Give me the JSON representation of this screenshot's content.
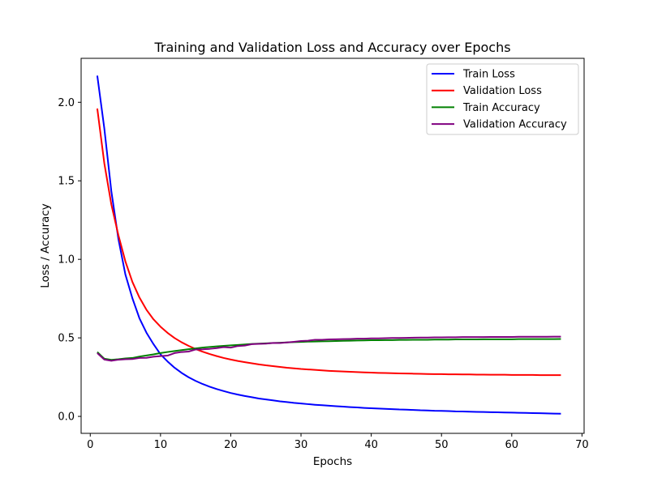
{
  "chart_data": {
    "type": "line",
    "title": "Training and Validation Loss and Accuracy over Epochs",
    "xlabel": "Epochs",
    "ylabel": "Loss / Accuracy",
    "xlim": [
      -1.3,
      70.3
    ],
    "ylim": [
      -0.108,
      2.28
    ],
    "x_ticks": [
      0,
      10,
      20,
      30,
      40,
      50,
      60,
      70
    ],
    "x_tick_labels": [
      "0",
      "10",
      "20",
      "30",
      "40",
      "50",
      "60",
      "70"
    ],
    "y_ticks": [
      0.0,
      0.5,
      1.0,
      1.5,
      2.0
    ],
    "y_tick_labels": [
      "0.0",
      "0.5",
      "1.0",
      "1.5",
      "2.0"
    ],
    "grid": false,
    "legend_position": "top-right",
    "x": [
      1,
      2,
      3,
      4,
      5,
      6,
      7,
      8,
      9,
      10,
      11,
      12,
      13,
      14,
      15,
      16,
      17,
      18,
      19,
      20,
      21,
      22,
      23,
      24,
      25,
      26,
      27,
      28,
      29,
      30,
      31,
      32,
      33,
      34,
      35,
      36,
      37,
      38,
      39,
      40,
      41,
      42,
      43,
      44,
      45,
      46,
      47,
      48,
      49,
      50,
      51,
      52,
      53,
      54,
      55,
      56,
      57,
      58,
      59,
      60,
      61,
      62,
      63,
      64,
      65,
      66,
      67
    ],
    "series": [
      {
        "name": "Train Loss",
        "color": "#0000ff",
        "values": [
          2.17,
          1.834,
          1.434,
          1.131,
          0.904,
          0.752,
          0.625,
          0.533,
          0.46,
          0.395,
          0.35,
          0.31,
          0.277,
          0.249,
          0.226,
          0.206,
          0.189,
          0.174,
          0.161,
          0.149,
          0.139,
          0.13,
          0.122,
          0.114,
          0.108,
          0.102,
          0.096,
          0.091,
          0.086,
          0.082,
          0.078,
          0.074,
          0.071,
          0.068,
          0.065,
          0.062,
          0.059,
          0.057,
          0.054,
          0.052,
          0.05,
          0.048,
          0.046,
          0.044,
          0.043,
          0.041,
          0.039,
          0.038,
          0.036,
          0.035,
          0.034,
          0.032,
          0.031,
          0.03,
          0.029,
          0.028,
          0.027,
          0.026,
          0.025,
          0.024,
          0.023,
          0.022,
          0.021,
          0.02,
          0.019,
          0.018,
          0.017
        ]
      },
      {
        "name": "Validation Loss",
        "color": "#ff0000",
        "values": [
          1.96,
          1.612,
          1.35,
          1.155,
          0.987,
          0.856,
          0.757,
          0.679,
          0.618,
          0.571,
          0.532,
          0.499,
          0.472,
          0.449,
          0.429,
          0.412,
          0.397,
          0.384,
          0.372,
          0.362,
          0.353,
          0.345,
          0.338,
          0.331,
          0.325,
          0.32,
          0.315,
          0.31,
          0.306,
          0.302,
          0.299,
          0.296,
          0.293,
          0.29,
          0.288,
          0.286,
          0.284,
          0.282,
          0.28,
          0.279,
          0.277,
          0.276,
          0.275,
          0.274,
          0.273,
          0.272,
          0.271,
          0.27,
          0.269,
          0.269,
          0.268,
          0.268,
          0.267,
          0.267,
          0.266,
          0.266,
          0.265,
          0.265,
          0.265,
          0.264,
          0.264,
          0.264,
          0.264,
          0.263,
          0.263,
          0.263,
          0.263
        ]
      },
      {
        "name": "Train Accuracy",
        "color": "#008000",
        "values": [
          0.41,
          0.367,
          0.36,
          0.364,
          0.369,
          0.372,
          0.381,
          0.388,
          0.395,
          0.403,
          0.41,
          0.416,
          0.422,
          0.428,
          0.433,
          0.438,
          0.442,
          0.446,
          0.449,
          0.452,
          0.455,
          0.458,
          0.461,
          0.463,
          0.465,
          0.467,
          0.469,
          0.471,
          0.473,
          0.474,
          0.476,
          0.477,
          0.478,
          0.479,
          0.48,
          0.481,
          0.482,
          0.483,
          0.484,
          0.485,
          0.485,
          0.486,
          0.486,
          0.487,
          0.487,
          0.488,
          0.488,
          0.488,
          0.489,
          0.489,
          0.489,
          0.49,
          0.49,
          0.49,
          0.49,
          0.491,
          0.491,
          0.491,
          0.491,
          0.491,
          0.492,
          0.492,
          0.492,
          0.492,
          0.492,
          0.492,
          0.493
        ]
      },
      {
        "name": "Validation Accuracy",
        "color": "#800080",
        "values": [
          0.403,
          0.362,
          0.354,
          0.361,
          0.364,
          0.365,
          0.372,
          0.373,
          0.38,
          0.384,
          0.387,
          0.403,
          0.41,
          0.413,
          0.426,
          0.427,
          0.43,
          0.435,
          0.441,
          0.438,
          0.448,
          0.451,
          0.46,
          0.462,
          0.463,
          0.468,
          0.467,
          0.471,
          0.475,
          0.48,
          0.482,
          0.488,
          0.488,
          0.49,
          0.491,
          0.492,
          0.493,
          0.495,
          0.495,
          0.497,
          0.497,
          0.498,
          0.499,
          0.499,
          0.5,
          0.501,
          0.502,
          0.502,
          0.503,
          0.503,
          0.504,
          0.504,
          0.505,
          0.505,
          0.505,
          0.505,
          0.506,
          0.506,
          0.506,
          0.506,
          0.507,
          0.507,
          0.507,
          0.507,
          0.507,
          0.508,
          0.508
        ]
      }
    ]
  }
}
